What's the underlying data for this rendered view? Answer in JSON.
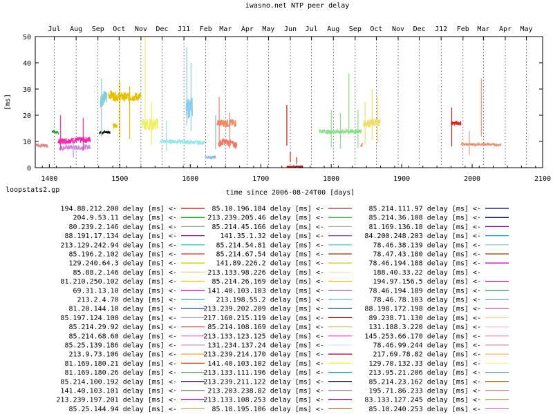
{
  "chart_data": {
    "type": "line",
    "title": "iwasno.net NTP peer delay",
    "xlabel": "time since 2006-08-24T00 [days]",
    "ylabel": "[ms]",
    "footer": "loopstats2.gp",
    "xlim": [
      1380,
      2100
    ],
    "ylim": [
      0,
      50
    ],
    "x_ticks": [
      1400,
      1500,
      1600,
      1700,
      1800,
      1900,
      2000,
      2100
    ],
    "y_ticks": [
      0,
      10,
      20,
      30,
      40,
      50
    ],
    "month_ticks": [
      {
        "label": "Jul",
        "x": 1407
      },
      {
        "label": "Aug",
        "x": 1438
      },
      {
        "label": "Sep",
        "x": 1469
      },
      {
        "label": "Oct",
        "x": 1499
      },
      {
        "label": "Nov",
        "x": 1530
      },
      {
        "label": "Dec",
        "x": 1560
      },
      {
        "label": "J11",
        "x": 1591
      },
      {
        "label": "Feb",
        "x": 1622
      },
      {
        "label": "Mar",
        "x": 1650
      },
      {
        "label": "Apr",
        "x": 1681
      },
      {
        "label": "May",
        "x": 1711
      },
      {
        "label": "Jun",
        "x": 1742
      },
      {
        "label": "Jul",
        "x": 1772
      },
      {
        "label": "Aug",
        "x": 1803
      },
      {
        "label": "Sep",
        "x": 1834
      },
      {
        "label": "Oct",
        "x": 1864
      },
      {
        "label": "Nov",
        "x": 1895
      },
      {
        "label": "Dec",
        "x": 1925
      },
      {
        "label": "J12",
        "x": 1956
      },
      {
        "label": "Feb",
        "x": 1987
      },
      {
        "label": "Mar",
        "x": 2016
      },
      {
        "label": "Apr",
        "x": 2047
      },
      {
        "label": "May",
        "x": 2077
      }
    ],
    "grid": "vertical dotted at month boundaries",
    "legend_placement": "below chart, three columns",
    "series": [
      {
        "name": "194.88.212.200 delay [ms]",
        "color": "#cc0000",
        "segments": [
          [
            1381,
            9
          ],
          [
            1383,
            8
          ],
          [
            1386,
            9
          ],
          [
            1390,
            8
          ],
          [
            1393,
            8.5
          ],
          [
            1397,
            8
          ]
        ]
      },
      {
        "name": "204.9.53.11 delay [ms]",
        "color": "#009900",
        "segments": [
          [
            1404,
            14
          ],
          [
            1406,
            13
          ],
          [
            1410,
            13
          ],
          [
            1413,
            13.5
          ]
        ]
      },
      {
        "name": "80.239.2.146 delay [ms]",
        "color": "#999999",
        "segments": []
      },
      {
        "name": "88.191.17.134 delay [ms]",
        "color": "#6600cc",
        "segments": []
      },
      {
        "name": "213.129.242.94 delay [ms]",
        "color": "#33cccc",
        "segments": []
      },
      {
        "name": "85.196.2.102 delay [ms]",
        "color": "#cc3333",
        "segments": []
      },
      {
        "name": "129.240.64.3 delay [ms]",
        "color": "#cccc00",
        "segments": []
      },
      {
        "name": "85.88.2.146 delay [ms]",
        "color": "#ffcc99",
        "segments": []
      },
      {
        "name": "81.210.250.102 delay [ms]",
        "color": "#e6c000",
        "segments": []
      },
      {
        "name": "69.31.13.10 delay [ms]",
        "color": "#cc00cc",
        "segments": []
      },
      {
        "name": "213.2.4.70 delay [ms]",
        "color": "#3399ff",
        "segments": []
      },
      {
        "name": "81.20.144.10 delay [ms]",
        "color": "#336699",
        "segments": []
      },
      {
        "name": "85.197.124.100 delay [ms]",
        "color": "#9999cc",
        "segments": []
      },
      {
        "name": "85.214.29.92 delay [ms]",
        "color": "#cc6666",
        "segments": []
      },
      {
        "name": "85.214.68.60 delay [ms]",
        "color": "#ee88cc",
        "segments": []
      },
      {
        "name": "85.25.139.186 delay [ms]",
        "color": "#cc99cc",
        "segments": []
      },
      {
        "name": "213.9.73.106 delay [ms]",
        "color": "#ffaa44",
        "segments": []
      },
      {
        "name": "81.169.180.21 delay [ms]",
        "color": "#cc3300",
        "segments": []
      },
      {
        "name": "81.169.180.26 delay [ms]",
        "color": "#669966",
        "segments": []
      },
      {
        "name": "85.214.100.192 delay [ms]",
        "color": "#330066",
        "segments": []
      },
      {
        "name": "141.40.103.101 delay [ms]",
        "color": "#666666",
        "segments": []
      },
      {
        "name": "213.239.197.201 delay [ms]",
        "color": "#990099",
        "segments": []
      },
      {
        "name": "85.25.144.94 delay [ms]",
        "color": "#cc9966",
        "segments": []
      },
      {
        "name": "85.10.196.184 delay [ms]",
        "color": "#993333",
        "segments": []
      },
      {
        "name": "213.239.205.46 delay [ms]",
        "color": "#33aa33",
        "segments": []
      },
      {
        "name": "85.214.45.166 delay [ms]",
        "color": "#aaaaaa",
        "segments": []
      },
      {
        "name": "141.35.1.32 delay [ms]",
        "color": "#6633cc",
        "segments": []
      },
      {
        "name": "85.214.54.81 delay [ms]",
        "color": "#66cccc",
        "segments": []
      },
      {
        "name": "85.214.67.54 delay [ms]",
        "color": "#993300",
        "segments": []
      },
      {
        "name": "141.89.226.2 delay [ms]",
        "color": "#cccc33",
        "segments": []
      },
      {
        "name": "213.133.98.226 delay [ms]",
        "color": "#ffe0cc",
        "segments": []
      },
      {
        "name": "85.214.26.169 delay [ms]",
        "color": "#ddbb00",
        "segments": []
      },
      {
        "name": "141.40.103.103 delay [ms]",
        "color": "#996699",
        "segments": []
      },
      {
        "name": "213.198.55.2 delay [ms]",
        "color": "#66aaff",
        "segments": []
      },
      {
        "name": "213.239.202.209 delay [ms]",
        "color": "#226688",
        "segments": []
      },
      {
        "name": "217.160.215.119 delay [ms]",
        "color": "#660000",
        "segments": []
      },
      {
        "name": "85.214.108.169 delay [ms]",
        "color": "#cccc66",
        "segments": []
      },
      {
        "name": "213.133.123.125 delay [ms]",
        "color": "#ff66cc",
        "segments": []
      },
      {
        "name": "131.234.137.24 delay [ms]",
        "color": "#cceeee",
        "segments": []
      },
      {
        "name": "213.239.214.170 delay [ms]",
        "color": "#cc0033",
        "segments": []
      },
      {
        "name": "141.40.103.102 delay [ms]",
        "color": "#ffee33",
        "segments": []
      },
      {
        "name": "213.133.111.196 delay [ms]",
        "color": "#009999",
        "segments": []
      },
      {
        "name": "213.239.211.122 delay [ms]",
        "color": "#000033",
        "segments": []
      },
      {
        "name": "213.203.238.82 delay [ms]",
        "color": "#777777",
        "segments": []
      },
      {
        "name": "213.133.108.253 delay [ms]",
        "color": "#660066",
        "segments": []
      },
      {
        "name": "85.10.195.106 delay [ms]",
        "color": "#aa6633",
        "segments": []
      },
      {
        "name": "85.214.111.97 delay [ms]",
        "color": "#000066",
        "segments": []
      },
      {
        "name": "85.214.36.108 delay [ms]",
        "color": "#000044",
        "segments": []
      },
      {
        "name": "81.169.136.18 delay [ms]",
        "color": "#660099",
        "segments": []
      },
      {
        "name": "84.200.248.203 delay [ms]",
        "color": "#0099cc",
        "segments": []
      },
      {
        "name": "78.46.38.139 delay [ms]",
        "color": "#99cccc",
        "segments": []
      },
      {
        "name": "78.47.43.180 delay [ms]",
        "color": "#993300",
        "segments": []
      },
      {
        "name": "78.46.194.188 delay [ms]",
        "color": "#cc00cc",
        "segments": []
      },
      {
        "name": "188.40.33.22 delay [ms]",
        "color": "#ffffff",
        "segments": []
      },
      {
        "name": "194.97.156.5 delay [ms]",
        "color": "#cc0066",
        "segments": []
      },
      {
        "name": "78.46.194.189 delay [ms]",
        "color": "#339966",
        "segments": []
      },
      {
        "name": "78.46.78.103 delay [ms]",
        "color": "#6699cc",
        "segments": []
      },
      {
        "name": "88.198.172.198 delay [ms]",
        "color": "#cc6699",
        "segments": []
      },
      {
        "name": "89.238.71.130 delay [ms]",
        "color": "#ffcc99",
        "segments": []
      },
      {
        "name": "131.188.3.220 delay [ms]",
        "color": "#ffcccc",
        "segments": []
      },
      {
        "name": "145.253.66.170 delay [ms]",
        "color": "#ff99cc",
        "segments": []
      },
      {
        "name": "78.46.99.244 delay [ms]",
        "color": "#cc9999",
        "segments": []
      },
      {
        "name": "217.69.78.82 delay [ms]",
        "color": "#ffbb66",
        "segments": []
      },
      {
        "name": "129.70.132.33 delay [ms]",
        "color": "#ffee99",
        "segments": []
      },
      {
        "name": "213.95.21.206 delay [ms]",
        "color": "#669999",
        "segments": []
      },
      {
        "name": "85.214.23.162 delay [ms]",
        "color": "#886600",
        "segments": []
      },
      {
        "name": "195.71.86.233 delay [ms]",
        "color": "#cc6666",
        "segments": []
      },
      {
        "name": "83.133.127.245 delay [ms]",
        "color": "#999966",
        "segments": []
      },
      {
        "name": "85.10.240.253 delay [ms]",
        "color": "#cc66cc",
        "segments": []
      }
    ],
    "traces": [
      {
        "color": "#e08888",
        "pts": [
          [
            1381,
            9
          ],
          [
            1386,
            8.3
          ],
          [
            1392,
            8.6
          ],
          [
            1398,
            8.2
          ]
        ],
        "noise": 0.6
      },
      {
        "color": "#009900",
        "pts": [
          [
            1404,
            14
          ],
          [
            1413,
            13.2
          ]
        ],
        "noise": 0.5
      },
      {
        "color": "#ff22aa",
        "pts": [
          [
            1412,
            10
          ],
          [
            1425,
            10.3
          ],
          [
            1440,
            10.5
          ],
          [
            1458,
            10.7
          ]
        ],
        "noise": 1.2
      },
      {
        "color": "#cc88dd",
        "pts": [
          [
            1414,
            7.5
          ],
          [
            1430,
            7.8
          ],
          [
            1445,
            7.6
          ],
          [
            1458,
            8
          ]
        ],
        "noise": 0.9
      },
      {
        "color": "#000000",
        "pts": [
          [
            1471,
            13.5
          ],
          [
            1486,
            13.5
          ]
        ],
        "noise": 0.6
      },
      {
        "color": "#88ccdd",
        "pts": [
          [
            1472,
            26
          ],
          [
            1478,
            26.5
          ],
          [
            1482,
            27
          ]
        ],
        "noise": 3
      },
      {
        "color": "#e6c000",
        "pts": [
          [
            1484,
            28
          ],
          [
            1496,
            27
          ],
          [
            1510,
            27
          ],
          [
            1530,
            27
          ]
        ],
        "noise": 1.8
      },
      {
        "color": "#e6c000",
        "pts": [
          [
            1490,
            16
          ],
          [
            1496,
            16
          ]
        ],
        "noise": 0.8
      },
      {
        "color": "#eeee66",
        "pts": [
          [
            1532,
            17
          ],
          [
            1540,
            16.5
          ],
          [
            1554,
            16.5
          ]
        ],
        "noise": 2.5
      },
      {
        "color": "#99e6e6",
        "pts": [
          [
            1557,
            10
          ],
          [
            1580,
            10
          ],
          [
            1600,
            9.7
          ],
          [
            1620,
            9.5
          ]
        ],
        "noise": 0.8
      },
      {
        "color": "#88ccee",
        "pts": [
          [
            1594,
            22
          ],
          [
            1599,
            23
          ],
          [
            1603,
            23
          ]
        ],
        "noise": 4
      },
      {
        "color": "#88bbdd",
        "pts": [
          [
            1621,
            4
          ],
          [
            1636,
            4
          ]
        ],
        "noise": 0.5
      },
      {
        "color": "#ee8866",
        "pts": [
          [
            1638,
            17
          ],
          [
            1646,
            17
          ],
          [
            1660,
            17
          ],
          [
            1665,
            17
          ]
        ],
        "noise": 1.5
      },
      {
        "color": "#ee7766",
        "pts": [
          [
            1640,
            9
          ],
          [
            1648,
            10
          ],
          [
            1655,
            9.5
          ],
          [
            1666,
            8.5
          ]
        ],
        "noise": 1.4
      },
      {
        "color": "#cc2200",
        "pts": [
          [
            1737,
            0.5
          ],
          [
            1748,
            0.4
          ]
        ],
        "noise": 0.3
      },
      {
        "color": "#992222",
        "pts": [
          [
            1748,
            0.4
          ],
          [
            1760,
            0.4
          ]
        ],
        "noise": 0.2
      },
      {
        "color": "#88dd88",
        "pts": [
          [
            1783,
            14
          ],
          [
            1800,
            13.6
          ],
          [
            1820,
            13.8
          ],
          [
            1843,
            13.9
          ]
        ],
        "noise": 0.8
      },
      {
        "color": "#ee7777",
        "pts": [
          [
            1842,
            8
          ],
          [
            1844,
            9
          ]
        ],
        "noise": 0.5
      },
      {
        "color": "#eedd66",
        "pts": [
          [
            1846,
            17
          ],
          [
            1855,
            17
          ],
          [
            1870,
            17.3
          ]
        ],
        "noise": 1.5
      },
      {
        "color": "#dd2222",
        "pts": [
          [
            1970,
            17
          ],
          [
            1984,
            17
          ]
        ],
        "noise": 0.8
      },
      {
        "color": "#e8947a",
        "pts": [
          [
            1984,
            9
          ],
          [
            2000,
            8.8
          ],
          [
            2020,
            8.9
          ],
          [
            2041,
            8.7
          ]
        ],
        "noise": 0.5
      }
    ],
    "spikes": [
      {
        "color": "#ff22aa",
        "x": 1416,
        "y": 20
      },
      {
        "color": "#ff22aa",
        "x": 1448,
        "y": 19
      },
      {
        "color": "#cc88dd",
        "x": 1434,
        "y": 11
      },
      {
        "color": "#88ccdd",
        "x": 1474,
        "y": 34
      },
      {
        "color": "#e6c000",
        "x": 1500,
        "y": 33
      },
      {
        "color": "#e6c000",
        "x": 1514,
        "y": 31
      },
      {
        "color": "#eeee66",
        "x": 1536,
        "y": 50
      },
      {
        "color": "#eeee66",
        "x": 1545,
        "y": 25
      },
      {
        "color": "#99e6e6",
        "x": 1566,
        "y": 18
      },
      {
        "color": "#88ccee",
        "x": 1595,
        "y": 46
      },
      {
        "color": "#88ccee",
        "x": 1601,
        "y": 40
      },
      {
        "color": "#88bbdd",
        "x": 1636,
        "y": 20
      },
      {
        "color": "#ee8866",
        "x": 1641,
        "y": 27
      },
      {
        "color": "#ee8866",
        "x": 1656,
        "y": 21
      },
      {
        "color": "#cc2200",
        "x": 1737,
        "y": 24
      },
      {
        "color": "#cc2200",
        "x": 1742,
        "y": 6
      },
      {
        "color": "#cc2200",
        "x": 1751,
        "y": 4
      },
      {
        "color": "#88dd88",
        "x": 1800,
        "y": 22
      },
      {
        "color": "#88dd88",
        "x": 1813,
        "y": 21
      },
      {
        "color": "#88dd88",
        "x": 1825,
        "y": 36
      },
      {
        "color": "#88dd88",
        "x": 1838,
        "y": 22
      },
      {
        "color": "#eedd66",
        "x": 1848,
        "y": 25
      },
      {
        "color": "#eedd66",
        "x": 1858,
        "y": 30
      },
      {
        "color": "#eedd66",
        "x": 1866,
        "y": 27
      },
      {
        "color": "#dd2222",
        "x": 1971,
        "y": 23
      },
      {
        "color": "#e8947a",
        "x": 2013,
        "y": 34
      },
      {
        "color": "#e8947a",
        "x": 1996,
        "y": 14
      }
    ]
  }
}
